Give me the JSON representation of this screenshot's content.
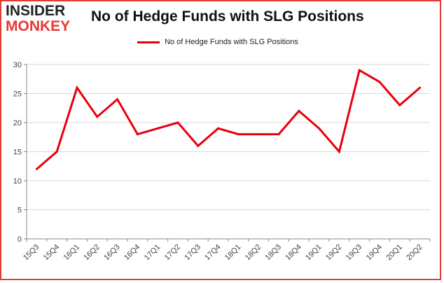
{
  "logo": {
    "line1": "INSIDER",
    "line2": "MONKEY"
  },
  "colors": {
    "line": "#e8000b",
    "frame": "#e53935",
    "grid": "#d9d9d9",
    "axis": "#888888"
  },
  "chart_data": {
    "type": "line",
    "title": "No of Hedge Funds with SLG Positions",
    "xlabel": "",
    "ylabel": "",
    "ylim": [
      0,
      30
    ],
    "yticks": [
      0,
      5,
      10,
      15,
      20,
      25,
      30
    ],
    "grid": true,
    "legend_position": "top-center",
    "categories": [
      "15Q3",
      "15Q4",
      "16Q1",
      "16Q2",
      "16Q3",
      "16Q4",
      "17Q1",
      "17Q2",
      "17Q3",
      "17Q4",
      "18Q1",
      "18Q2",
      "18Q3",
      "18Q4",
      "19Q1",
      "19Q2",
      "19Q3",
      "19Q4",
      "20Q1",
      "20Q2"
    ],
    "series": [
      {
        "name": "No of Hedge Funds with SLG Positions",
        "values": [
          12,
          15,
          26,
          21,
          24,
          18,
          19,
          20,
          16,
          19,
          18,
          18,
          18,
          22,
          19,
          15,
          29,
          27,
          23,
          26
        ]
      }
    ]
  }
}
